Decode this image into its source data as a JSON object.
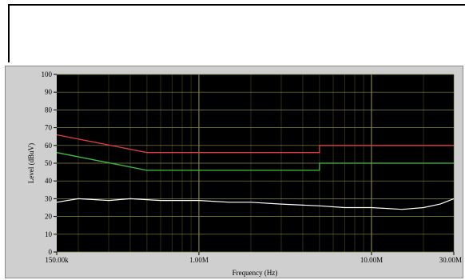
{
  "chart_data": {
    "type": "line",
    "xlabel": "Frequency (Hz)",
    "ylabel": "Level (dBuV)",
    "x_scale": "log",
    "xlim": [
      150000,
      30000000
    ],
    "ylim": [
      0,
      100
    ],
    "grid": true,
    "background_color": "#000000",
    "x_ticks": [
      {
        "value": 150000,
        "label": "150.00k"
      },
      {
        "value": 1000000,
        "label": "1.00M"
      },
      {
        "value": 10000000,
        "label": "10.00M"
      },
      {
        "value": 30000000,
        "label": "30.00M"
      }
    ],
    "y_ticks": [
      0,
      10,
      20,
      30,
      40,
      50,
      60,
      70,
      80,
      90,
      100
    ],
    "series": [
      {
        "color": "#e04040",
        "points": [
          [
            150000,
            66
          ],
          [
            500000,
            56
          ],
          [
            5000000,
            56
          ],
          [
            5000000,
            60
          ],
          [
            30000000,
            60
          ]
        ]
      },
      {
        "color": "#40c040",
        "points": [
          [
            150000,
            56
          ],
          [
            500000,
            46
          ],
          [
            5000000,
            46
          ],
          [
            5000000,
            50
          ],
          [
            30000000,
            50
          ]
        ]
      },
      {
        "color": "#ffffff",
        "points": [
          [
            150000,
            28
          ],
          [
            200000,
            30
          ],
          [
            300000,
            29
          ],
          [
            400000,
            30
          ],
          [
            600000,
            29
          ],
          [
            800000,
            29
          ],
          [
            1000000,
            29
          ],
          [
            1500000,
            28
          ],
          [
            2000000,
            28
          ],
          [
            3000000,
            27
          ],
          [
            5000000,
            26
          ],
          [
            7000000,
            25
          ],
          [
            10000000,
            25
          ],
          [
            15000000,
            24
          ],
          [
            20000000,
            25
          ],
          [
            25000000,
            27
          ],
          [
            30000000,
            30
          ]
        ]
      }
    ]
  }
}
